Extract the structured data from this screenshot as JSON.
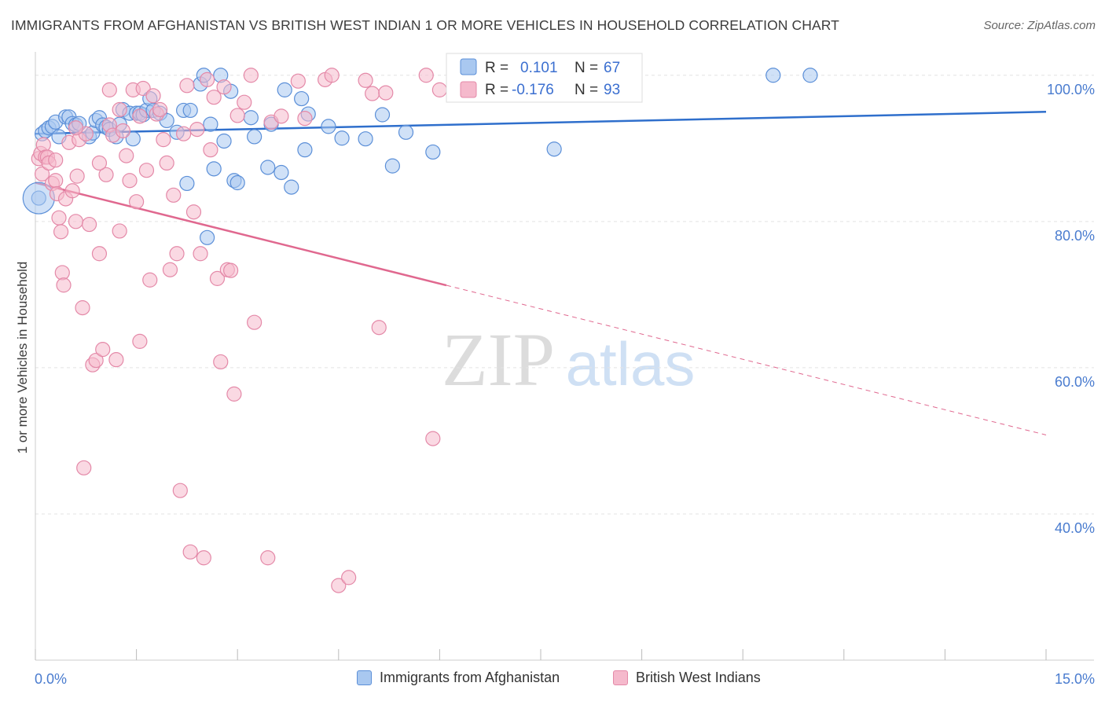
{
  "title": "IMMIGRANTS FROM AFGHANISTAN VS BRITISH WEST INDIAN 1 OR MORE VEHICLES IN HOUSEHOLD CORRELATION CHART",
  "source": "Source: ZipAtlas.com",
  "watermark": {
    "zip": "ZIP",
    "atlas": "atlas"
  },
  "colors": {
    "blue_fill": "#a9c8f0",
    "blue_stroke": "#5b8fd8",
    "blue_line": "#2f6fcc",
    "pink_fill": "#f5b9cc",
    "pink_stroke": "#e489a8",
    "pink_line": "#e0688f",
    "grid": "#e3e3e3",
    "tick_text": "#4a7ccf"
  },
  "legend": {
    "rows": [
      {
        "r_label": "R =",
        "r_value": "0.101",
        "n_label": "N =",
        "n_value": "67"
      },
      {
        "r_label": "R =",
        "r_value": "-0.176",
        "n_label": "N =",
        "n_value": "93"
      }
    ]
  },
  "chart_data": {
    "type": "scatter",
    "ylabel": "1 or more Vehicles in Household",
    "xlim": [
      0,
      15
    ],
    "ylim": [
      20,
      103.2
    ],
    "x_tick_labels": [
      {
        "value": 0,
        "label": "0.0%"
      },
      {
        "value": 15,
        "label": "15.0%"
      }
    ],
    "y_tick_labels": [
      {
        "value": 100,
        "label": "100.0%"
      },
      {
        "value": 80,
        "label": "80.0%"
      },
      {
        "value": 60,
        "label": "60.0%"
      },
      {
        "value": 40,
        "label": "40.0%"
      }
    ],
    "x_minor_ticks": [
      0,
      1.5,
      3,
      4.5,
      6,
      7.5,
      9,
      10.5,
      12,
      13.5,
      15
    ],
    "grid": true,
    "legend_position": "top-center",
    "series": [
      {
        "name": "Immigrants from Afghanistan",
        "color": "blue",
        "trend": {
          "x0": 0,
          "y0": 92.0,
          "x1": 15,
          "y1": 95.0,
          "solid_until": 15
        },
        "points": [
          [
            0.1,
            92.0
          ],
          [
            0.15,
            92.4
          ],
          [
            0.2,
            92.8
          ],
          [
            0.25,
            93.0
          ],
          [
            0.3,
            93.6
          ],
          [
            0.35,
            91.6
          ],
          [
            0.45,
            94.3
          ],
          [
            0.5,
            94.3
          ],
          [
            0.55,
            93.4
          ],
          [
            0.6,
            93.2
          ],
          [
            0.65,
            93.4
          ],
          [
            0.8,
            91.6
          ],
          [
            0.85,
            92.1
          ],
          [
            0.9,
            93.8
          ],
          [
            0.95,
            94.2
          ],
          [
            1.0,
            93.2
          ],
          [
            1.05,
            92.9
          ],
          [
            1.1,
            92.6
          ],
          [
            1.2,
            91.6
          ],
          [
            1.25,
            93.3
          ],
          [
            1.3,
            95.3
          ],
          [
            1.4,
            94.8
          ],
          [
            1.45,
            91.3
          ],
          [
            1.5,
            94.8
          ],
          [
            1.55,
            94.8
          ],
          [
            1.6,
            94.6
          ],
          [
            1.65,
            95.2
          ],
          [
            1.7,
            96.8
          ],
          [
            1.75,
            95.2
          ],
          [
            1.85,
            94.8
          ],
          [
            1.95,
            93.8
          ],
          [
            2.1,
            92.2
          ],
          [
            2.2,
            95.2
          ],
          [
            2.25,
            85.2
          ],
          [
            2.3,
            95.2
          ],
          [
            2.45,
            98.8
          ],
          [
            2.5,
            100.0
          ],
          [
            2.55,
            77.8
          ],
          [
            2.6,
            93.3
          ],
          [
            2.65,
            87.2
          ],
          [
            2.75,
            100.0
          ],
          [
            2.8,
            91.0
          ],
          [
            2.9,
            97.8
          ],
          [
            2.95,
            85.6
          ],
          [
            3.0,
            85.3
          ],
          [
            3.2,
            94.2
          ],
          [
            3.25,
            91.6
          ],
          [
            3.5,
            93.3
          ],
          [
            3.45,
            87.4
          ],
          [
            3.7,
            98.0
          ],
          [
            3.65,
            86.7
          ],
          [
            3.8,
            84.7
          ],
          [
            3.95,
            96.8
          ],
          [
            4.0,
            89.8
          ],
          [
            4.05,
            94.7
          ],
          [
            4.35,
            93.0
          ],
          [
            4.55,
            91.4
          ],
          [
            4.9,
            91.3
          ],
          [
            5.15,
            94.6
          ],
          [
            5.3,
            87.6
          ],
          [
            5.5,
            92.2
          ],
          [
            5.9,
            89.5
          ],
          [
            7.7,
            89.9
          ],
          [
            10.95,
            100.0
          ],
          [
            11.5,
            100.0
          ],
          [
            0.05,
            83.2
          ]
        ]
      },
      {
        "name": "British West Indians",
        "color": "pink",
        "trend": {
          "x0": 0,
          "y0": 85.3,
          "x1": 15,
          "y1": 50.8,
          "solid_until": 6.1
        },
        "points": [
          [
            0.05,
            88.6
          ],
          [
            0.08,
            89.3
          ],
          [
            0.1,
            86.5
          ],
          [
            0.12,
            90.5
          ],
          [
            0.15,
            88.8
          ],
          [
            0.18,
            88.8
          ],
          [
            0.2,
            88.0
          ],
          [
            0.25,
            85.2
          ],
          [
            0.3,
            85.6
          ],
          [
            0.32,
            83.8
          ],
          [
            0.35,
            80.5
          ],
          [
            0.38,
            78.6
          ],
          [
            0.4,
            73.0
          ],
          [
            0.42,
            71.3
          ],
          [
            0.45,
            83.1
          ],
          [
            0.5,
            90.8
          ],
          [
            0.55,
            84.2
          ],
          [
            0.6,
            80.0
          ],
          [
            0.62,
            86.2
          ],
          [
            0.65,
            91.2
          ],
          [
            0.7,
            68.2
          ],
          [
            0.72,
            46.3
          ],
          [
            0.75,
            92.0
          ],
          [
            0.8,
            79.6
          ],
          [
            0.85,
            60.4
          ],
          [
            0.9,
            61.0
          ],
          [
            0.95,
            75.6
          ],
          [
            1.0,
            62.5
          ],
          [
            1.05,
            86.4
          ],
          [
            1.1,
            93.2
          ],
          [
            1.15,
            91.8
          ],
          [
            1.2,
            61.1
          ],
          [
            1.25,
            78.7
          ],
          [
            1.3,
            92.4
          ],
          [
            1.35,
            89.0
          ],
          [
            1.4,
            85.6
          ],
          [
            1.45,
            98.0
          ],
          [
            1.5,
            82.7
          ],
          [
            1.55,
            63.6
          ],
          [
            1.6,
            98.2
          ],
          [
            1.65,
            87.0
          ],
          [
            1.7,
            72.0
          ],
          [
            1.75,
            97.2
          ],
          [
            1.8,
            94.7
          ],
          [
            1.85,
            95.3
          ],
          [
            1.9,
            91.2
          ],
          [
            1.95,
            88.0
          ],
          [
            2.0,
            73.4
          ],
          [
            2.05,
            83.6
          ],
          [
            2.1,
            75.6
          ],
          [
            2.15,
            43.2
          ],
          [
            2.2,
            92.0
          ],
          [
            2.25,
            98.6
          ],
          [
            2.3,
            34.8
          ],
          [
            2.35,
            81.3
          ],
          [
            2.4,
            92.6
          ],
          [
            2.45,
            75.6
          ],
          [
            2.5,
            34.0
          ],
          [
            2.55,
            99.4
          ],
          [
            2.6,
            89.8
          ],
          [
            2.65,
            97.0
          ],
          [
            2.7,
            72.2
          ],
          [
            2.75,
            60.8
          ],
          [
            2.8,
            98.4
          ],
          [
            2.85,
            73.4
          ],
          [
            2.9,
            73.3
          ],
          [
            2.95,
            56.4
          ],
          [
            3.0,
            94.5
          ],
          [
            3.1,
            96.3
          ],
          [
            3.2,
            100.0
          ],
          [
            3.25,
            66.2
          ],
          [
            3.45,
            34.0
          ],
          [
            3.5,
            93.6
          ],
          [
            3.65,
            94.4
          ],
          [
            3.9,
            99.2
          ],
          [
            4.0,
            94.1
          ],
          [
            4.3,
            99.4
          ],
          [
            4.4,
            100.0
          ],
          [
            4.5,
            30.2
          ],
          [
            4.65,
            31.3
          ],
          [
            4.9,
            99.3
          ],
          [
            5.0,
            97.5
          ],
          [
            5.1,
            65.5
          ],
          [
            5.2,
            97.6
          ],
          [
            5.8,
            100.0
          ],
          [
            5.9,
            50.3
          ],
          [
            6.0,
            98.0
          ],
          [
            1.1,
            98.0
          ],
          [
            0.6,
            92.8
          ],
          [
            0.3,
            88.4
          ],
          [
            0.95,
            88.0
          ],
          [
            1.25,
            95.3
          ],
          [
            1.55,
            94.4
          ]
        ]
      }
    ]
  },
  "bottom_legend": [
    {
      "label": "Immigrants from Afghanistan"
    },
    {
      "label": "British West Indians"
    }
  ]
}
